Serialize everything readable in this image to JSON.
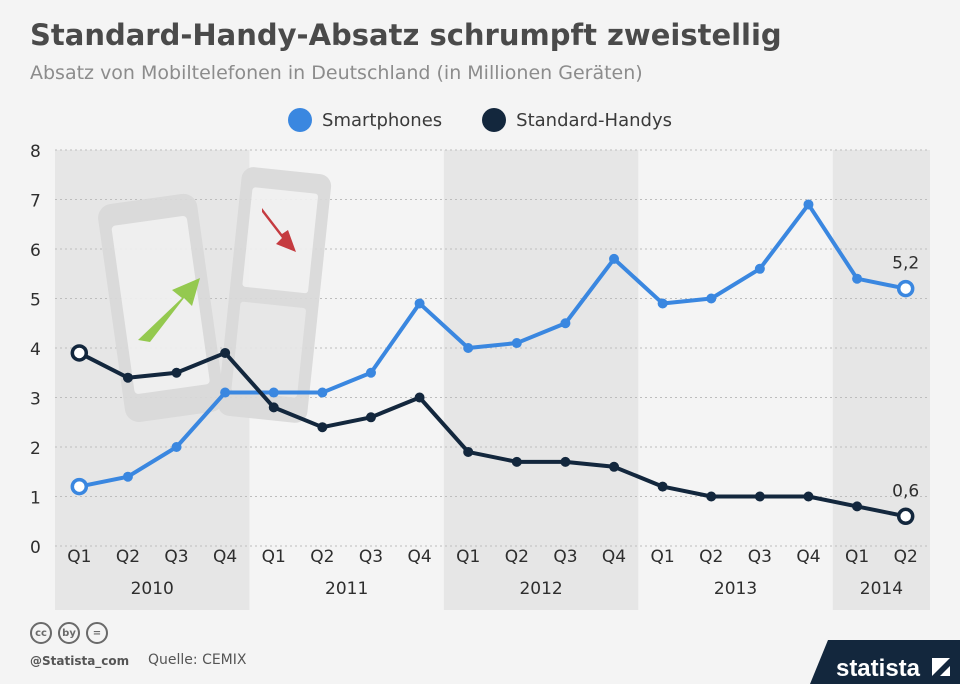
{
  "title": "Standard-Handy-Absatz schrumpft zweistellig",
  "subtitle": "Absatz von Mobiltelefonen in Deutschland (in Millionen Geräten)",
  "legend": [
    {
      "label": "Smartphones",
      "color": "#3a87e0"
    },
    {
      "label": "Standard-Handys",
      "color": "#13273d"
    }
  ],
  "footer": {
    "credit": "@Statista_com",
    "source": "Quelle: CEMIX",
    "brand": "statista",
    "cc_icons": [
      "cc",
      "by",
      "="
    ]
  },
  "chart_data": {
    "type": "line",
    "x": [
      "Q1",
      "Q2",
      "Q3",
      "Q4",
      "Q1",
      "Q2",
      "Q3",
      "Q4",
      "Q1",
      "Q2",
      "Q3",
      "Q4",
      "Q1",
      "Q2",
      "Q3",
      "Q4",
      "Q1",
      "Q2"
    ],
    "years": [
      {
        "label": "2010",
        "quarters": 4
      },
      {
        "label": "2011",
        "quarters": 4
      },
      {
        "label": "2012",
        "quarters": 4
      },
      {
        "label": "2013",
        "quarters": 4
      },
      {
        "label": "2014",
        "quarters": 2
      }
    ],
    "yticks": [
      0,
      1,
      2,
      3,
      4,
      5,
      6,
      7,
      8
    ],
    "ylim": [
      0,
      8
    ],
    "grid": true,
    "series": [
      {
        "name": "Smartphones",
        "color": "#3a87e0",
        "values": [
          1.2,
          1.4,
          2.0,
          3.1,
          3.1,
          3.1,
          3.5,
          4.9,
          4.0,
          4.1,
          4.5,
          5.8,
          4.9,
          5.0,
          5.6,
          6.9,
          5.4,
          5.2
        ],
        "end_label": "5,2"
      },
      {
        "name": "Standard-Handys",
        "color": "#13273d",
        "values": [
          3.9,
          3.4,
          3.5,
          3.9,
          2.8,
          2.4,
          2.6,
          3.0,
          1.9,
          1.7,
          1.7,
          1.6,
          1.2,
          1.0,
          1.0,
          1.0,
          0.8,
          0.6
        ],
        "end_label": "0,6"
      }
    ]
  }
}
